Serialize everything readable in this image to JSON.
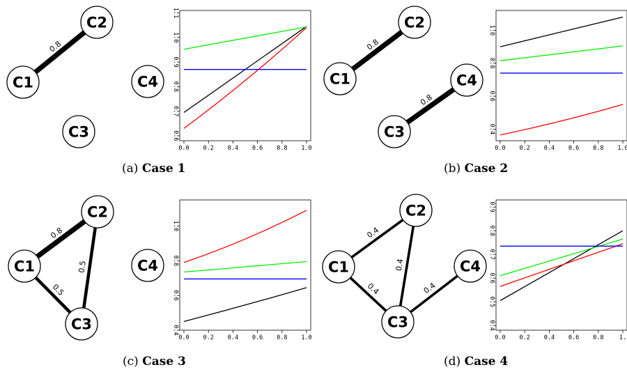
{
  "panels": [
    {
      "caption_prefix": "(a)",
      "caption_case": "Case 1",
      "graph": {
        "nodes": [
          "C1",
          "C2",
          "C3",
          "C4"
        ],
        "edges": [
          {
            "from": "C1",
            "to": "C2",
            "weight": "0.8"
          }
        ]
      }
    },
    {
      "caption_prefix": "(b)",
      "caption_case": "Case 2",
      "graph": {
        "nodes": [
          "C1",
          "C2",
          "C3",
          "C4"
        ],
        "edges": [
          {
            "from": "C1",
            "to": "C2",
            "weight": "0.8"
          },
          {
            "from": "C3",
            "to": "C4",
            "weight": "0.8"
          }
        ]
      }
    },
    {
      "caption_prefix": "(c)",
      "caption_case": "Case 3",
      "graph": {
        "nodes": [
          "C1",
          "C2",
          "C3",
          "C4"
        ],
        "edges": [
          {
            "from": "C1",
            "to": "C2",
            "weight": "0.8"
          },
          {
            "from": "C2",
            "to": "C3",
            "weight": "0.5"
          },
          {
            "from": "C1",
            "to": "C3",
            "weight": "0.5"
          }
        ]
      }
    },
    {
      "caption_prefix": "(d)",
      "caption_case": "Case 4",
      "graph": {
        "nodes": [
          "C1",
          "C2",
          "C3",
          "C4"
        ],
        "edges": [
          {
            "from": "C1",
            "to": "C2",
            "weight": "0.4"
          },
          {
            "from": "C2",
            "to": "C3",
            "weight": "0.4"
          },
          {
            "from": "C1",
            "to": "C3",
            "weight": "0.4"
          },
          {
            "from": "C3",
            "to": "C4",
            "weight": "0.4"
          }
        ]
      }
    }
  ],
  "chart_data": [
    {
      "type": "line",
      "panel": "a",
      "title": "",
      "xlabel": "",
      "ylabel": "",
      "xlim": [
        0,
        1
      ],
      "ylim": [
        0.58,
        1.11
      ],
      "xticks": [
        "0.0",
        "0.2",
        "0.4",
        "0.6",
        "0.8",
        "1.0"
      ],
      "yticks": [
        "0.6",
        "0.7",
        "0.8",
        "0.9",
        "1.0",
        "1.1"
      ],
      "xtick_values": [
        0,
        0.2,
        0.4,
        0.6,
        0.8,
        1.0
      ],
      "ytick_values": [
        0.6,
        0.7,
        0.8,
        0.9,
        1.0,
        1.1
      ],
      "series": [
        {
          "color": "#000000",
          "x": [
            0,
            0.5,
            1
          ],
          "y": [
            0.695,
            0.87,
            1.045
          ]
        },
        {
          "color": "#ff0000",
          "x": [
            0,
            0.5,
            1
          ],
          "y": [
            0.63,
            0.825,
            1.04
          ]
        },
        {
          "color": "#00ee00",
          "x": [
            0,
            0.5,
            1
          ],
          "y": [
            0.952,
            0.998,
            1.043
          ]
        },
        {
          "color": "#0000ff",
          "x": [
            0,
            0.5,
            1
          ],
          "y": [
            0.87,
            0.87,
            0.87
          ]
        }
      ]
    },
    {
      "type": "line",
      "panel": "b",
      "title": "",
      "xlabel": "",
      "ylabel": "",
      "xlim": [
        0,
        1
      ],
      "ylim": [
        0.33,
        1.12
      ],
      "xticks": [
        "0.0",
        "0.2",
        "0.4",
        "0.6",
        "0.8",
        "1.0"
      ],
      "yticks": [
        "0.4",
        "0.6",
        "0.8",
        "1.0"
      ],
      "xtick_values": [
        0,
        0.2,
        0.4,
        0.6,
        0.8,
        1.0
      ],
      "ytick_values": [
        0.4,
        0.6,
        0.8,
        1.0
      ],
      "series": [
        {
          "color": "#000000",
          "x": [
            0,
            0.5,
            1
          ],
          "y": [
            0.9,
            0.99,
            1.08
          ]
        },
        {
          "color": "#00ee00",
          "x": [
            0,
            0.5,
            1
          ],
          "y": [
            0.815,
            0.86,
            0.905
          ]
        },
        {
          "color": "#0000ff",
          "x": [
            0,
            0.5,
            1
          ],
          "y": [
            0.74,
            0.74,
            0.74
          ]
        },
        {
          "color": "#ff0000",
          "x": [
            0,
            0.5,
            1
          ],
          "y": [
            0.365,
            0.45,
            0.55
          ]
        }
      ]
    },
    {
      "type": "line",
      "panel": "c",
      "title": "",
      "xlabel": "",
      "ylabel": "",
      "xlim": [
        0,
        1
      ],
      "ylim": [
        0.4,
        1.15
      ],
      "xticks": [
        "0.0",
        "0.2",
        "0.4",
        "0.6",
        "0.8",
        "1.0"
      ],
      "yticks": [
        "0.4",
        "0.6",
        "0.8",
        "1.0"
      ],
      "xtick_values": [
        0,
        0.2,
        0.4,
        0.6,
        0.8,
        1.0
      ],
      "ytick_values": [
        0.4,
        0.6,
        0.8,
        1.0
      ],
      "series": [
        {
          "color": "#ff0000",
          "x": [
            0,
            0.5,
            1
          ],
          "y": [
            0.79,
            0.925,
            1.09
          ]
        },
        {
          "color": "#00ee00",
          "x": [
            0,
            0.5,
            1
          ],
          "y": [
            0.735,
            0.765,
            0.795
          ]
        },
        {
          "color": "#0000ff",
          "x": [
            0,
            0.5,
            1
          ],
          "y": [
            0.695,
            0.695,
            0.695
          ]
        },
        {
          "color": "#000000",
          "x": [
            0,
            0.5,
            1
          ],
          "y": [
            0.45,
            0.545,
            0.645
          ]
        }
      ]
    },
    {
      "type": "line",
      "panel": "d",
      "title": "",
      "xlabel": "",
      "ylabel": "",
      "xlim": [
        0,
        1
      ],
      "ylim": [
        0.38,
        0.93
      ],
      "xticks": [
        "0.0",
        "0.2",
        "0.4",
        "0.6",
        "0.8",
        "1."
      ],
      "yticks": [
        "0.4",
        "0.5",
        "0.6",
        "0.7",
        "0.8",
        "0.9"
      ],
      "xtick_values": [
        0,
        0.2,
        0.4,
        0.6,
        0.8,
        1.0
      ],
      "ytick_values": [
        0.4,
        0.5,
        0.6,
        0.7,
        0.8,
        0.9
      ],
      "series": [
        {
          "color": "#000000",
          "x": [
            0,
            1
          ],
          "y": [
            0.505,
            0.8
          ]
        },
        {
          "color": "#00ee00",
          "x": [
            0,
            1
          ],
          "y": [
            0.61,
            0.765
          ]
        },
        {
          "color": "#ff0000",
          "x": [
            0,
            1
          ],
          "y": [
            0.565,
            0.745
          ]
        },
        {
          "color": "#0000ff",
          "x": [
            0,
            1
          ],
          "y": [
            0.735,
            0.735
          ]
        }
      ]
    }
  ]
}
